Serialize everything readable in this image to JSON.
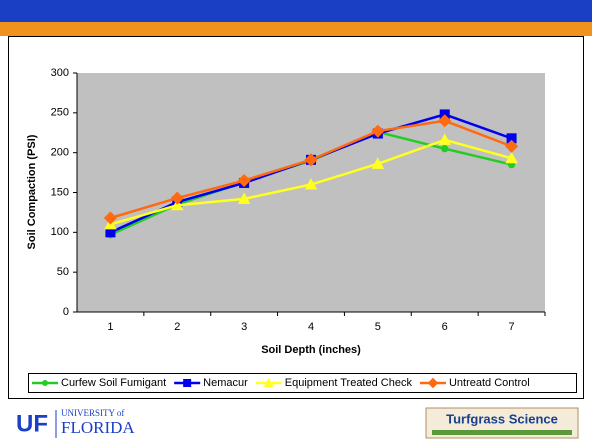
{
  "chart_data": {
    "type": "line",
    "x_label": "Soil Depth (inches)",
    "y_label": "Soil Compaction (PSI)",
    "categories": [
      "1",
      "2",
      "3",
      "4",
      "5",
      "6",
      "7"
    ],
    "series": [
      {
        "name": "Curfew Soil Fumigant",
        "color": "#22cc22",
        "marker": "circle",
        "values": [
          97,
          135,
          163,
          190,
          226,
          205,
          185
        ]
      },
      {
        "name": "Nemacur",
        "color": "#0000ee",
        "marker": "square",
        "values": [
          100,
          138,
          162,
          191,
          224,
          248,
          218
        ]
      },
      {
        "name": "Equipment Treated Check",
        "color": "#ffff22",
        "marker": "triangle",
        "values": [
          110,
          134,
          142,
          160,
          186,
          216,
          193
        ]
      },
      {
        "name": "Untreatd Control",
        "color": "#ff6a10",
        "marker": "diamond",
        "values": [
          118,
          143,
          165,
          191,
          227,
          240,
          208
        ]
      }
    ],
    "ylim": [
      0,
      300
    ],
    "yticks": [
      0,
      50,
      100,
      150,
      200,
      250,
      300
    ],
    "grid": false,
    "legend": "bottom"
  },
  "footer": {
    "logo_mark": "UF",
    "logo_top": "UNIVERSITY of",
    "logo_name": "FLORIDA",
    "badge": "Turfgrass Science"
  }
}
